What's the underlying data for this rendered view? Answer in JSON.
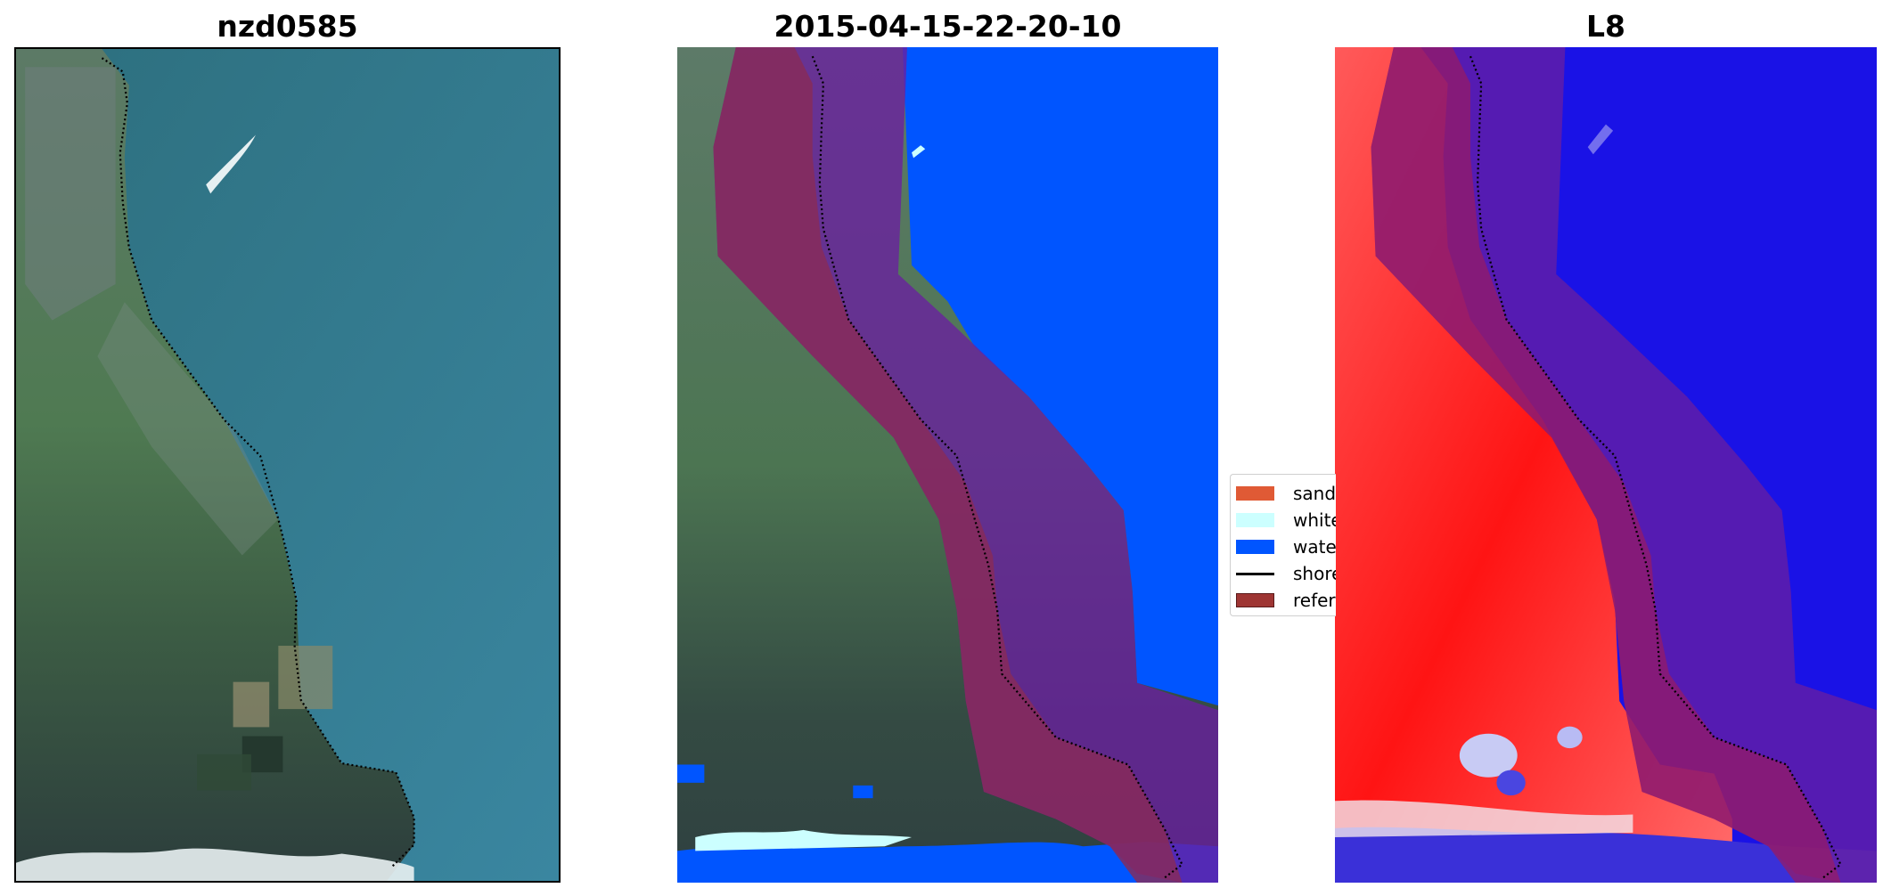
{
  "figure": {
    "panels": [
      {
        "title": "nzd0585"
      },
      {
        "title": "2015-04-15-22-20-10"
      },
      {
        "title": "L8"
      }
    ],
    "legend": {
      "items": [
        {
          "label": "sand",
          "color": "#e05a35"
        },
        {
          "label": "whitewater",
          "color": "#ccffff"
        },
        {
          "label": "water",
          "color": "#0055ff"
        },
        {
          "label": "shoreline",
          "color": "#000000"
        },
        {
          "label": "reference",
          "color": "#9e3533"
        }
      ]
    },
    "colors": {
      "ocean": "#2b6d7c",
      "land": "#4d7a55",
      "water_class": "#0055ff",
      "reference_buffer": "#5a2a96",
      "reference_land": "#8a2a56",
      "index_positive": "#ff1010",
      "index_negative": "#1010e6"
    }
  }
}
